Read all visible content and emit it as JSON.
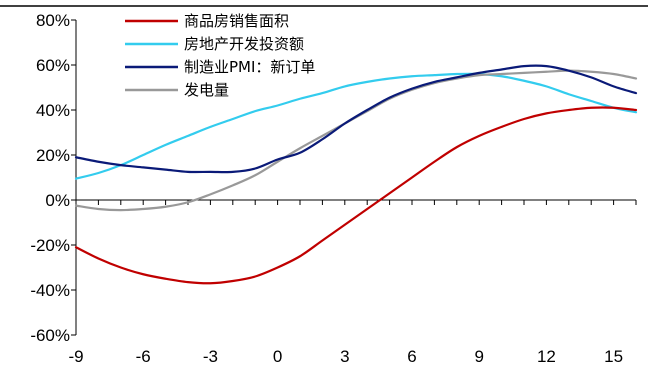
{
  "chart_data": {
    "type": "line",
    "title": "",
    "xlabel": "",
    "ylabel": "",
    "xlim": [
      -9,
      16
    ],
    "ylim": [
      -60,
      80
    ],
    "x_ticks": [
      -9,
      -6,
      -3,
      0,
      3,
      6,
      9,
      12,
      15
    ],
    "x_tick_labels": [
      "-9",
      "-6",
      "-3",
      "0",
      "3",
      "6",
      "9",
      "12",
      "15"
    ],
    "y_ticks": [
      -60,
      -40,
      -20,
      0,
      20,
      40,
      60,
      80
    ],
    "y_tick_labels": [
      "-60%",
      "-40%",
      "-20%",
      "0%",
      "20%",
      "40%",
      "60%",
      "80%"
    ],
    "grid": false,
    "legend_position": "top-left",
    "x": [
      -9,
      -8,
      -7,
      -6,
      -5,
      -4,
      -3,
      -2,
      -1,
      0,
      1,
      2,
      3,
      4,
      5,
      6,
      7,
      8,
      9,
      10,
      11,
      12,
      13,
      14,
      15,
      16
    ],
    "series": [
      {
        "name": "商品房销售面积",
        "color": "#c00000",
        "values": [
          -21,
          -26,
          -30,
          -33,
          -35,
          -36.5,
          -37,
          -36,
          -34,
          -30,
          -25,
          -18,
          -11,
          -4,
          3,
          10,
          17,
          23.5,
          28.5,
          32.5,
          36,
          38.5,
          40,
          41,
          41,
          40
        ]
      },
      {
        "name": "房地产开发投资额",
        "color": "#33ccee",
        "values": [
          9.5,
          12,
          15.5,
          20,
          24.5,
          28.5,
          32.5,
          36,
          39.5,
          42,
          45,
          47.5,
          50.5,
          52.5,
          54,
          55,
          55.5,
          56,
          56,
          55,
          53,
          50.5,
          47,
          44,
          41,
          39
        ]
      },
      {
        "name": "制造业PMI：新订单",
        "color": "#0a1a78",
        "values": [
          19,
          17,
          15.5,
          14.5,
          13.5,
          12.5,
          12.5,
          12.5,
          14,
          18,
          21,
          27,
          34,
          40,
          45.5,
          49.5,
          52.5,
          54.5,
          56.5,
          58,
          59.5,
          59.5,
          57.5,
          54.5,
          50.5,
          47.5
        ]
      },
      {
        "name": "发电量",
        "color": "#999999",
        "values": [
          -2.5,
          -4,
          -4.5,
          -4,
          -3,
          -1,
          2.5,
          6.5,
          11,
          17,
          23,
          28.5,
          34,
          39.5,
          45,
          49,
          52,
          54,
          55.5,
          56,
          56.5,
          57,
          57.5,
          57,
          56,
          54
        ]
      }
    ]
  }
}
